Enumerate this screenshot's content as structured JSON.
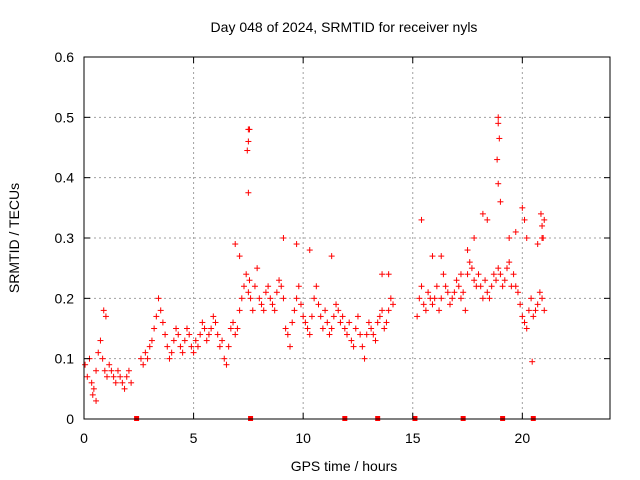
{
  "chart_data": {
    "type": "scatter",
    "title": "Day 048 of 2024, SRMTID for receiver nyls",
    "xlabel": "GPS time / hours",
    "ylabel": "SRMTID / TECUs",
    "xlim": [
      0,
      24
    ],
    "ylim": [
      0,
      0.6
    ],
    "xticks": [
      0,
      5,
      10,
      15,
      20
    ],
    "xtick_labels": [
      "0",
      "5",
      "10",
      "15",
      "20"
    ],
    "yticks": [
      0,
      0.1,
      0.2,
      0.3,
      0.4,
      0.5,
      0.6
    ],
    "ytick_labels": [
      "0",
      "0.1",
      "0.2",
      "0.3",
      "0.4",
      "0.5",
      "0.6"
    ],
    "grid": true,
    "marker": "+",
    "color": "#ff0000",
    "series": [
      {
        "name": "SRMTID",
        "x": [
          0.05,
          0.15,
          0.25,
          0.35,
          0.45,
          0.55,
          0.65,
          0.75,
          0.85,
          0.95,
          1.05,
          1.15,
          1.25,
          1.35,
          1.45,
          1.55,
          1.65,
          1.75,
          1.85,
          1.95,
          2.05,
          2.15,
          2.6,
          2.7,
          2.8,
          2.9,
          3.0,
          3.1,
          3.2,
          3.3,
          3.4,
          3.5,
          3.6,
          3.7,
          3.8,
          3.9,
          4.0,
          4.1,
          4.2,
          4.3,
          4.4,
          4.5,
          4.6,
          4.7,
          4.8,
          4.9,
          5.0,
          5.1,
          5.2,
          5.3,
          5.4,
          5.5,
          5.6,
          5.7,
          5.8,
          5.9,
          6.0,
          6.1,
          6.2,
          6.3,
          6.4,
          6.5,
          6.6,
          6.7,
          6.8,
          6.9,
          7.0,
          7.1,
          7.2,
          7.3,
          7.4,
          7.5,
          7.55,
          7.6,
          7.7,
          7.8,
          7.9,
          8.0,
          8.1,
          8.2,
          8.3,
          8.4,
          8.5,
          8.6,
          8.7,
          8.8,
          8.9,
          9.0,
          9.1,
          9.2,
          9.3,
          9.4,
          9.5,
          9.6,
          9.7,
          9.8,
          9.9,
          10.0,
          10.1,
          10.2,
          10.3,
          10.4,
          10.5,
          10.6,
          10.7,
          10.8,
          10.9,
          11.0,
          11.1,
          11.2,
          11.3,
          11.4,
          11.5,
          11.6,
          11.7,
          11.8,
          11.9,
          12.0,
          12.1,
          12.2,
          12.3,
          12.4,
          12.5,
          12.6,
          12.7,
          12.8,
          12.9,
          13.0,
          13.1,
          13.2,
          13.3,
          13.4,
          13.5,
          13.6,
          13.7,
          13.8,
          13.9,
          14.0,
          14.1,
          15.2,
          15.3,
          15.4,
          15.5,
          15.6,
          15.7,
          15.8,
          15.9,
          16.0,
          16.1,
          16.2,
          16.3,
          16.4,
          16.5,
          16.6,
          16.7,
          16.8,
          16.9,
          17.0,
          17.1,
          17.2,
          17.3,
          17.4,
          17.5,
          17.6,
          17.7,
          17.8,
          17.9,
          18.0,
          18.1,
          18.2,
          18.3,
          18.4,
          18.5,
          18.6,
          18.7,
          18.8,
          18.9,
          19.0,
          19.1,
          19.2,
          19.3,
          19.4,
          19.5,
          19.6,
          19.7,
          19.8,
          19.9,
          20.0,
          20.1,
          20.2,
          20.3,
          20.4,
          20.5,
          20.6,
          20.7,
          20.8,
          20.9,
          21.0,
          7.5,
          7.5,
          7.55,
          7.45,
          7.5,
          18.9,
          18.9,
          18.95,
          18.85,
          18.9,
          19.0,
          20.0,
          20.1,
          20.85,
          20.9,
          20.9,
          20.95,
          21.0,
          20.45,
          0.4,
          0.55,
          0.9,
          1.0,
          6.9,
          7.1,
          9.1,
          9.7,
          10.3,
          11.3,
          13.6,
          13.9,
          15.4,
          15.9,
          16.3,
          17.2,
          17.5,
          17.8,
          18.2,
          18.4,
          19.4,
          19.7,
          20.2,
          20.7
        ],
        "y": [
          0.09,
          0.07,
          0.1,
          0.06,
          0.05,
          0.08,
          0.11,
          0.13,
          0.1,
          0.08,
          0.07,
          0.09,
          0.08,
          0.07,
          0.06,
          0.08,
          0.07,
          0.06,
          0.05,
          0.07,
          0.08,
          0.06,
          0.1,
          0.09,
          0.11,
          0.1,
          0.12,
          0.13,
          0.15,
          0.17,
          0.2,
          0.18,
          0.16,
          0.14,
          0.12,
          0.1,
          0.11,
          0.13,
          0.15,
          0.14,
          0.12,
          0.11,
          0.13,
          0.15,
          0.14,
          0.12,
          0.11,
          0.13,
          0.12,
          0.14,
          0.16,
          0.15,
          0.13,
          0.14,
          0.15,
          0.17,
          0.16,
          0.14,
          0.12,
          0.13,
          0.1,
          0.09,
          0.12,
          0.15,
          0.16,
          0.14,
          0.15,
          0.18,
          0.2,
          0.22,
          0.24,
          0.21,
          0.23,
          0.2,
          0.18,
          0.22,
          0.25,
          0.2,
          0.19,
          0.18,
          0.21,
          0.22,
          0.2,
          0.19,
          0.18,
          0.21,
          0.23,
          0.22,
          0.2,
          0.15,
          0.14,
          0.12,
          0.16,
          0.18,
          0.2,
          0.22,
          0.19,
          0.17,
          0.16,
          0.15,
          0.14,
          0.17,
          0.2,
          0.22,
          0.19,
          0.17,
          0.15,
          0.18,
          0.16,
          0.14,
          0.15,
          0.17,
          0.19,
          0.18,
          0.16,
          0.17,
          0.15,
          0.14,
          0.16,
          0.13,
          0.12,
          0.15,
          0.17,
          0.14,
          0.12,
          0.1,
          0.14,
          0.16,
          0.15,
          0.14,
          0.13,
          0.16,
          0.17,
          0.18,
          0.15,
          0.16,
          0.18,
          0.2,
          0.19,
          0.17,
          0.2,
          0.22,
          0.19,
          0.18,
          0.21,
          0.2,
          0.19,
          0.2,
          0.22,
          0.18,
          0.2,
          0.24,
          0.22,
          0.21,
          0.19,
          0.2,
          0.21,
          0.23,
          0.22,
          0.2,
          0.21,
          0.18,
          0.24,
          0.26,
          0.25,
          0.23,
          0.22,
          0.24,
          0.22,
          0.2,
          0.23,
          0.21,
          0.2,
          0.22,
          0.24,
          0.23,
          0.25,
          0.24,
          0.22,
          0.23,
          0.25,
          0.26,
          0.22,
          0.24,
          0.22,
          0.21,
          0.19,
          0.17,
          0.16,
          0.15,
          0.18,
          0.2,
          0.17,
          0.18,
          0.19,
          0.21,
          0.2,
          0.18,
          0.48,
          0.46,
          0.48,
          0.445,
          0.375,
          0.5,
          0.49,
          0.465,
          0.43,
          0.39,
          0.36,
          0.35,
          0.33,
          0.34,
          0.3,
          0.32,
          0.3,
          0.33,
          0.095,
          0.04,
          0.03,
          0.18,
          0.17,
          0.29,
          0.27,
          0.3,
          0.29,
          0.28,
          0.27,
          0.24,
          0.24,
          0.33,
          0.27,
          0.27,
          0.24,
          0.28,
          0.3,
          0.34,
          0.33,
          0.3,
          0.31,
          0.3,
          0.29
        ]
      }
    ],
    "baseline_marks_x": [
      2.4,
      7.6,
      11.9,
      13.4,
      15.1,
      17.3,
      19.1,
      20.5
    ]
  }
}
